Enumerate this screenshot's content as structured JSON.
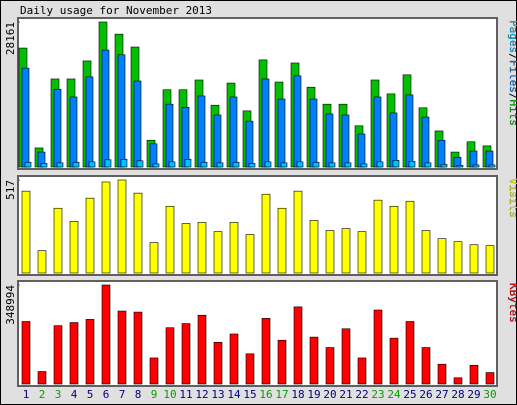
{
  "title": "Daily usage for November 2013",
  "chart_data": [
    {
      "type": "bar",
      "ylim": [
        0,
        28161
      ],
      "yticks": [
        28161
      ],
      "legend_separator": "/",
      "series": [
        {
          "name": "Pages",
          "color": "#00c0ff",
          "values": [
            900,
            700,
            800,
            900,
            1000,
            1400,
            1500,
            1200,
            600,
            1000,
            1500,
            900,
            800,
            900,
            700,
            1000,
            800,
            1000,
            900,
            800,
            800,
            600,
            1000,
            1300,
            1100,
            800,
            500,
            300,
            400,
            400
          ]
        },
        {
          "name": "Files",
          "color": "#0080ff",
          "values": [
            19200,
            2900,
            15100,
            13600,
            17500,
            22700,
            21800,
            16700,
            4500,
            12200,
            11600,
            13800,
            10100,
            13600,
            8900,
            17100,
            13200,
            17700,
            13200,
            10300,
            10100,
            6400,
            13600,
            10500,
            14000,
            9700,
            5200,
            1900,
            3100,
            3100
          ]
        },
        {
          "name": "Hits",
          "color": "#00c000",
          "values": [
            23100,
            3700,
            17100,
            17100,
            20600,
            28161,
            25800,
            23300,
            5200,
            15000,
            15000,
            16900,
            12000,
            16300,
            10900,
            20800,
            16500,
            20200,
            15500,
            12200,
            12200,
            8000,
            16900,
            14200,
            17900,
            11500,
            7000,
            2900,
            4900,
            4100
          ]
        }
      ]
    },
    {
      "type": "bar",
      "ylim": [
        0,
        517
      ],
      "yticks": [
        517
      ],
      "series": [
        {
          "name": "Visits",
          "color": "#ffff00",
          "values": [
            455,
            124,
            360,
            287,
            416,
            506,
            517,
            444,
            169,
            371,
            275,
            281,
            230,
            281,
            214,
            438,
            360,
            455,
            292,
            236,
            247,
            230,
            405,
            371,
            399,
            236,
            191,
            174,
            157,
            152
          ]
        }
      ]
    },
    {
      "type": "bar",
      "ylim": [
        0,
        348994
      ],
      "yticks": [
        348994
      ],
      "categories": [
        "1",
        "2",
        "3",
        "4",
        "5",
        "6",
        "7",
        "8",
        "9",
        "10",
        "11",
        "12",
        "13",
        "14",
        "15",
        "16",
        "17",
        "18",
        "19",
        "20",
        "21",
        "22",
        "23",
        "24",
        "25",
        "26",
        "27",
        "28",
        "29",
        "30"
      ],
      "category_colors": [
        "#000080",
        "#00a000",
        "#00a000",
        "#000080",
        "#000080",
        "#000080",
        "#000080",
        "#000080",
        "#00a000",
        "#00a000",
        "#000080",
        "#000080",
        "#000080",
        "#000080",
        "#000080",
        "#00a000",
        "#00a000",
        "#000080",
        "#000080",
        "#000080",
        "#000080",
        "#000080",
        "#00a000",
        "#00a000",
        "#000080",
        "#000080",
        "#000080",
        "#000080",
        "#000080",
        "#00a000"
      ],
      "series": [
        {
          "name": "KBytes",
          "color": "#ff0000",
          "values": [
            220400,
            44100,
            205700,
            216700,
            227800,
            348994,
            257200,
            253500,
            91800,
            198400,
            213100,
            242500,
            147000,
            176300,
            106500,
            231400,
            154300,
            271900,
            165300,
            128600,
            194700,
            91800,
            260800,
            161700,
            220400,
            128600,
            69800,
            22000,
            66100,
            40400
          ]
        }
      ]
    }
  ]
}
